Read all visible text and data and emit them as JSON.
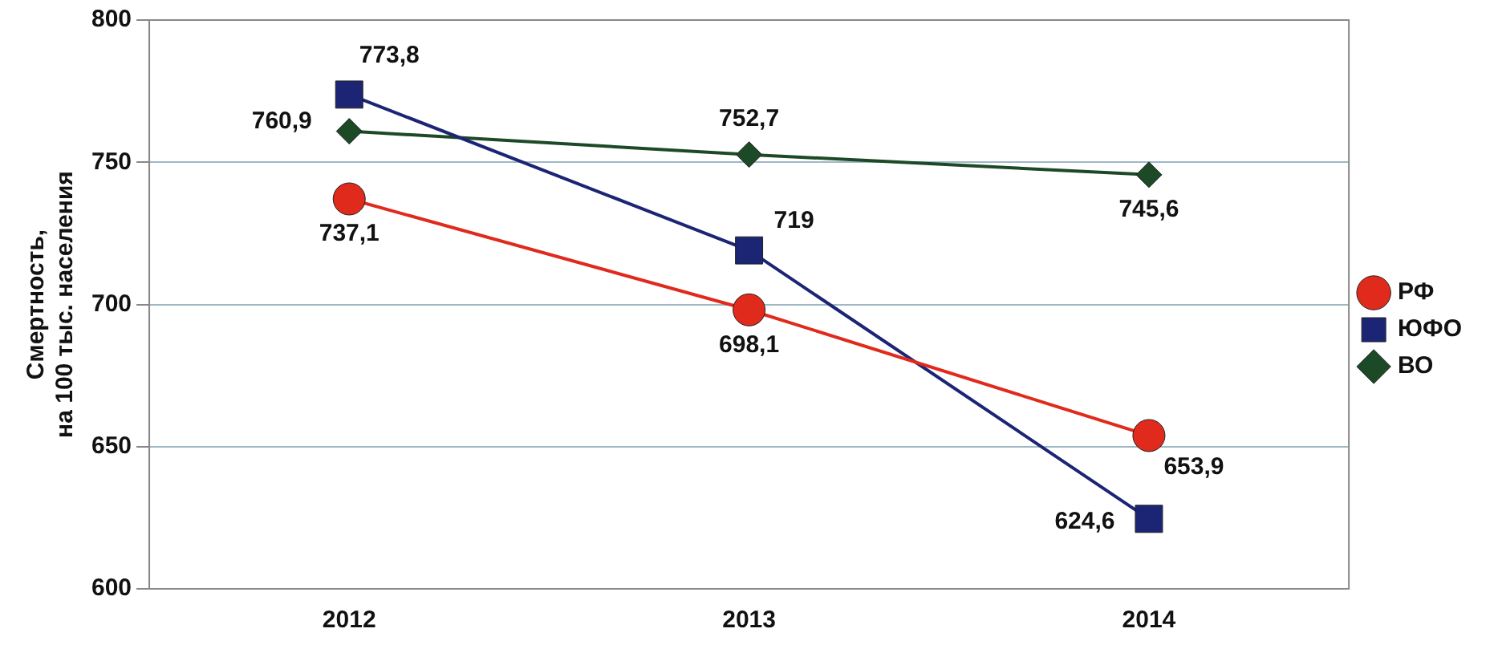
{
  "chart_data": {
    "type": "line",
    "ylabel": "Смертность,\nна 100 тыс. населения",
    "categories": [
      "2012",
      "2013",
      "2014"
    ],
    "series": [
      {
        "name": "РФ",
        "color": "#e02a1c",
        "marker": "circle",
        "values": [
          737.1,
          698.1,
          653.9
        ],
        "value_labels": [
          "737,1",
          "698,1",
          "653,9"
        ]
      },
      {
        "name": "ЮФО",
        "color": "#1c2474",
        "marker": "square",
        "values": [
          773.8,
          719,
          624.6
        ],
        "value_labels": [
          "773,8",
          "719",
          "624,6"
        ]
      },
      {
        "name": "ВО",
        "color": "#1d4a26",
        "marker": "diamond",
        "values": [
          760.9,
          752.7,
          745.6
        ],
        "value_labels": [
          "760,9",
          "752,7",
          "745,6"
        ]
      }
    ],
    "ylim": [
      600,
      800
    ],
    "yticks": [
      600,
      650,
      700,
      750,
      800
    ],
    "grid": "y",
    "legend": "right",
    "line_style": "solid"
  }
}
